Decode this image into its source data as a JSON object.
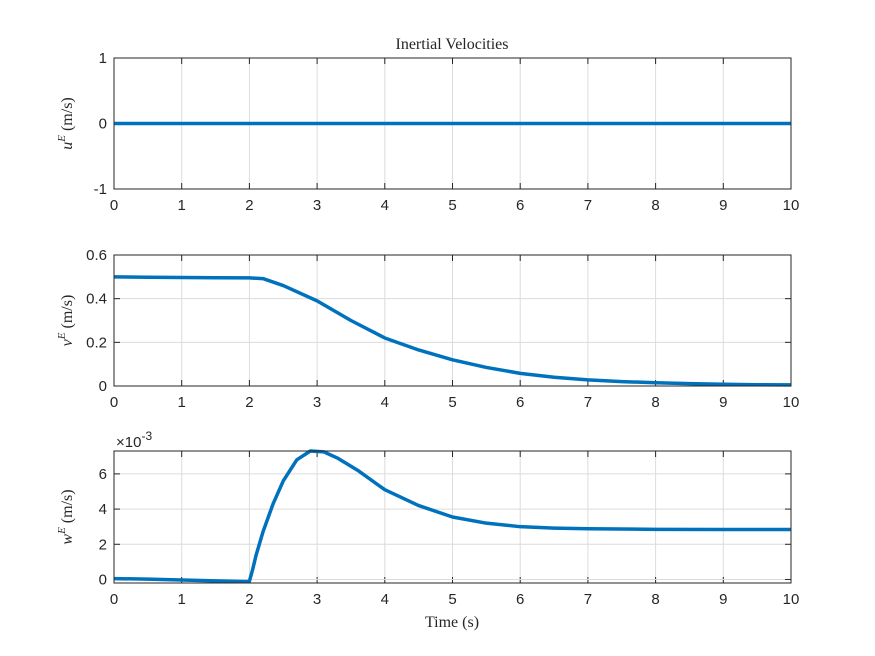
{
  "figure": {
    "title": "Inertial Velocities",
    "xlabel": "Time (s)"
  },
  "colors": {
    "line": "#0072BD",
    "axis": "#262626",
    "grid": "#dcdcdc",
    "background": "#ffffff"
  },
  "chart_data": [
    {
      "type": "line",
      "title": "Inertial Velocities",
      "ylabel_base": "u",
      "ylabel_sup": "E",
      "ylabel_unit": "(m/s)",
      "xlim": [
        0,
        10
      ],
      "ylim": [
        -1,
        1
      ],
      "xticks": [
        "0",
        "1",
        "2",
        "3",
        "4",
        "5",
        "6",
        "7",
        "8",
        "9",
        "10"
      ],
      "yticks": [
        {
          "value": -1,
          "label": "-1"
        },
        {
          "value": 0,
          "label": "0"
        },
        {
          "value": 1,
          "label": "1"
        }
      ],
      "grid": true,
      "series": [
        {
          "x": [
            0,
            10
          ],
          "y": [
            0,
            0
          ]
        }
      ]
    },
    {
      "type": "line",
      "ylabel_base": "v",
      "ylabel_sup": "E",
      "ylabel_unit": "(m/s)",
      "xlim": [
        0,
        10
      ],
      "ylim": [
        0,
        0.6
      ],
      "xticks": [
        "0",
        "1",
        "2",
        "3",
        "4",
        "5",
        "6",
        "7",
        "8",
        "9",
        "10"
      ],
      "yticks": [
        {
          "value": 0,
          "label": "0"
        },
        {
          "value": 0.2,
          "label": "0.2"
        },
        {
          "value": 0.4,
          "label": "0.4"
        },
        {
          "value": 0.6,
          "label": "0.6"
        }
      ],
      "grid": true,
      "series": [
        {
          "x": [
            0,
            0.5,
            1,
            1.5,
            2,
            2.2,
            2.5,
            3,
            3.5,
            4,
            4.5,
            5,
            5.5,
            6,
            6.5,
            7,
            7.5,
            8,
            8.5,
            9,
            9.5,
            10
          ],
          "y": [
            0.5,
            0.498,
            0.497,
            0.496,
            0.495,
            0.492,
            0.46,
            0.39,
            0.3,
            0.22,
            0.165,
            0.12,
            0.085,
            0.058,
            0.04,
            0.028,
            0.02,
            0.015,
            0.011,
            0.008,
            0.006,
            0.005
          ]
        }
      ]
    },
    {
      "type": "line",
      "ylabel_base": "w",
      "ylabel_sup": "E",
      "ylabel_unit": "(m/s)",
      "multiplier": "×10",
      "multiplier_exp": "-3",
      "xlim": [
        0,
        10
      ],
      "ylim": [
        -0.2,
        7.3
      ],
      "xticks": [
        "0",
        "1",
        "2",
        "3",
        "4",
        "5",
        "6",
        "7",
        "8",
        "9",
        "10"
      ],
      "yticks": [
        {
          "value": 0,
          "label": "0"
        },
        {
          "value": 2,
          "label": "2"
        },
        {
          "value": 4,
          "label": "4"
        },
        {
          "value": 6,
          "label": "6"
        }
      ],
      "grid": true,
      "series": [
        {
          "x": [
            0,
            0.5,
            1,
            1.5,
            1.95,
            2.0,
            2.05,
            2.1,
            2.2,
            2.35,
            2.5,
            2.7,
            2.9,
            3.1,
            3.3,
            3.6,
            4,
            4.5,
            5,
            5.5,
            6,
            6.5,
            7,
            8,
            9,
            10
          ],
          "y": [
            0.05,
            0.02,
            -0.03,
            -0.08,
            -0.12,
            -0.1,
            0.6,
            1.4,
            2.7,
            4.3,
            5.6,
            6.8,
            7.3,
            7.25,
            6.9,
            6.2,
            5.1,
            4.2,
            3.55,
            3.2,
            3.0,
            2.92,
            2.88,
            2.85,
            2.84,
            2.84
          ]
        }
      ]
    }
  ]
}
